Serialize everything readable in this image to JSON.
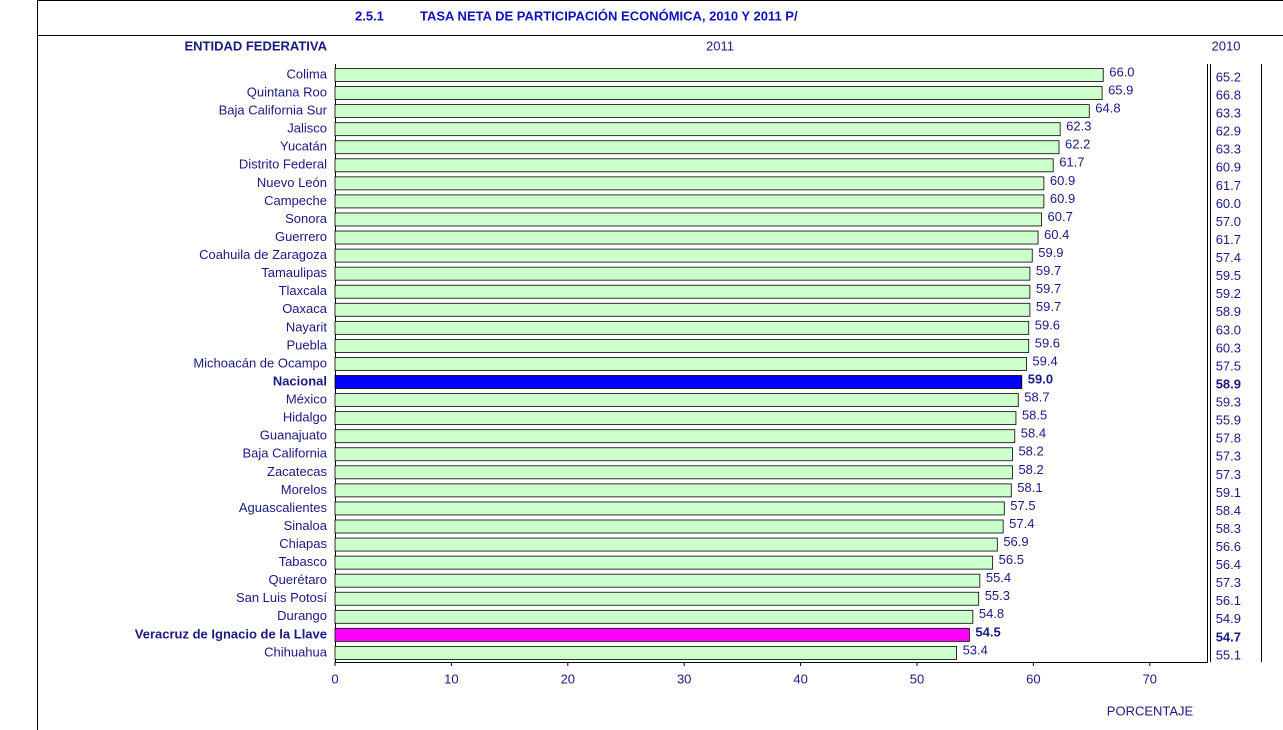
{
  "chart_data": {
    "type": "bar",
    "number": "2.5.1",
    "title": "TASA NETA DE PARTICIPACIÓN ECONÓMICA, 2010 Y 2011 P/",
    "category_header": "ENTIDAD FEDERATIVA",
    "xlabel": "PORCENTAJE",
    "xlim": [
      0,
      75
    ],
    "xticks": [
      0,
      10,
      20,
      30,
      40,
      50,
      60,
      70
    ],
    "categories": [
      "Colima",
      "Quintana Roo",
      "Baja California Sur",
      "Jalisco",
      "Yucatán",
      "Distrito Federal",
      "Nuevo León",
      "Campeche",
      "Sonora",
      "Guerrero",
      "Coahuila de Zaragoza",
      "Tamaulipas",
      "Tlaxcala",
      "Oaxaca",
      "Nayarit",
      "Puebla",
      "Michoacán de Ocampo",
      "Nacional",
      "México",
      "Hidalgo",
      "Guanajuato",
      "Baja California",
      "Zacatecas",
      "Morelos",
      "Aguascalientes",
      "Sinaloa",
      "Chiapas",
      "Tabasco",
      "Querétaro",
      "San Luis Potosí",
      "Durango",
      "Veracruz de Ignacio de la Llave",
      "Chihuahua"
    ],
    "series": [
      {
        "name": "2011",
        "color": "#ccffcc",
        "point_colors": {
          "17": "#0000ff",
          "31": "#ff00ff"
        },
        "values": [
          66.0,
          65.9,
          64.8,
          62.3,
          62.2,
          61.7,
          60.9,
          60.9,
          60.7,
          60.4,
          59.9,
          59.7,
          59.7,
          59.7,
          59.6,
          59.6,
          59.4,
          59.0,
          58.7,
          58.5,
          58.4,
          58.2,
          58.2,
          58.1,
          57.5,
          57.4,
          56.9,
          56.5,
          55.4,
          55.3,
          54.8,
          54.5,
          53.4
        ],
        "value_labels": [
          "66.0",
          "65.9",
          "64.8",
          "62.3",
          "62.2",
          "61.7",
          "60.9",
          "60.9",
          "60.7",
          "60.4",
          "59.9",
          "59.7",
          "59.7",
          "59.7",
          "59.6",
          "59.6",
          "59.4",
          "59.0",
          "58.7",
          "58.5",
          "58.4",
          "58.2",
          "58.2",
          "58.1",
          "57.5",
          "57.4",
          "56.9",
          "56.5",
          "55.4",
          "55.3",
          "54.8",
          "54.5",
          "53.4"
        ]
      },
      {
        "name": "2010",
        "values": [
          65.2,
          66.8,
          63.3,
          62.9,
          63.3,
          60.9,
          61.7,
          60.0,
          57.0,
          61.7,
          57.4,
          59.5,
          59.2,
          58.9,
          63.0,
          60.3,
          57.5,
          58.9,
          59.3,
          55.9,
          57.8,
          57.3,
          57.3,
          59.1,
          58.4,
          58.3,
          56.6,
          56.4,
          57.3,
          56.1,
          54.9,
          54.7,
          55.1
        ],
        "value_labels": [
          "65.2",
          "66.8",
          "63.3",
          "62.9",
          "63.3",
          "60.9",
          "61.7",
          "60.0",
          "57.0",
          "61.7",
          "57.4",
          "59.5",
          "59.2",
          "58.9",
          "63.0",
          "60.3",
          "57.5",
          "58.9",
          "59.3",
          "55.9",
          "57.8",
          "57.3",
          "57.3",
          "59.1",
          "58.4",
          "58.3",
          "56.6",
          "56.4",
          "57.3",
          "56.1",
          "54.9",
          "54.7",
          "55.1"
        ]
      }
    ]
  }
}
